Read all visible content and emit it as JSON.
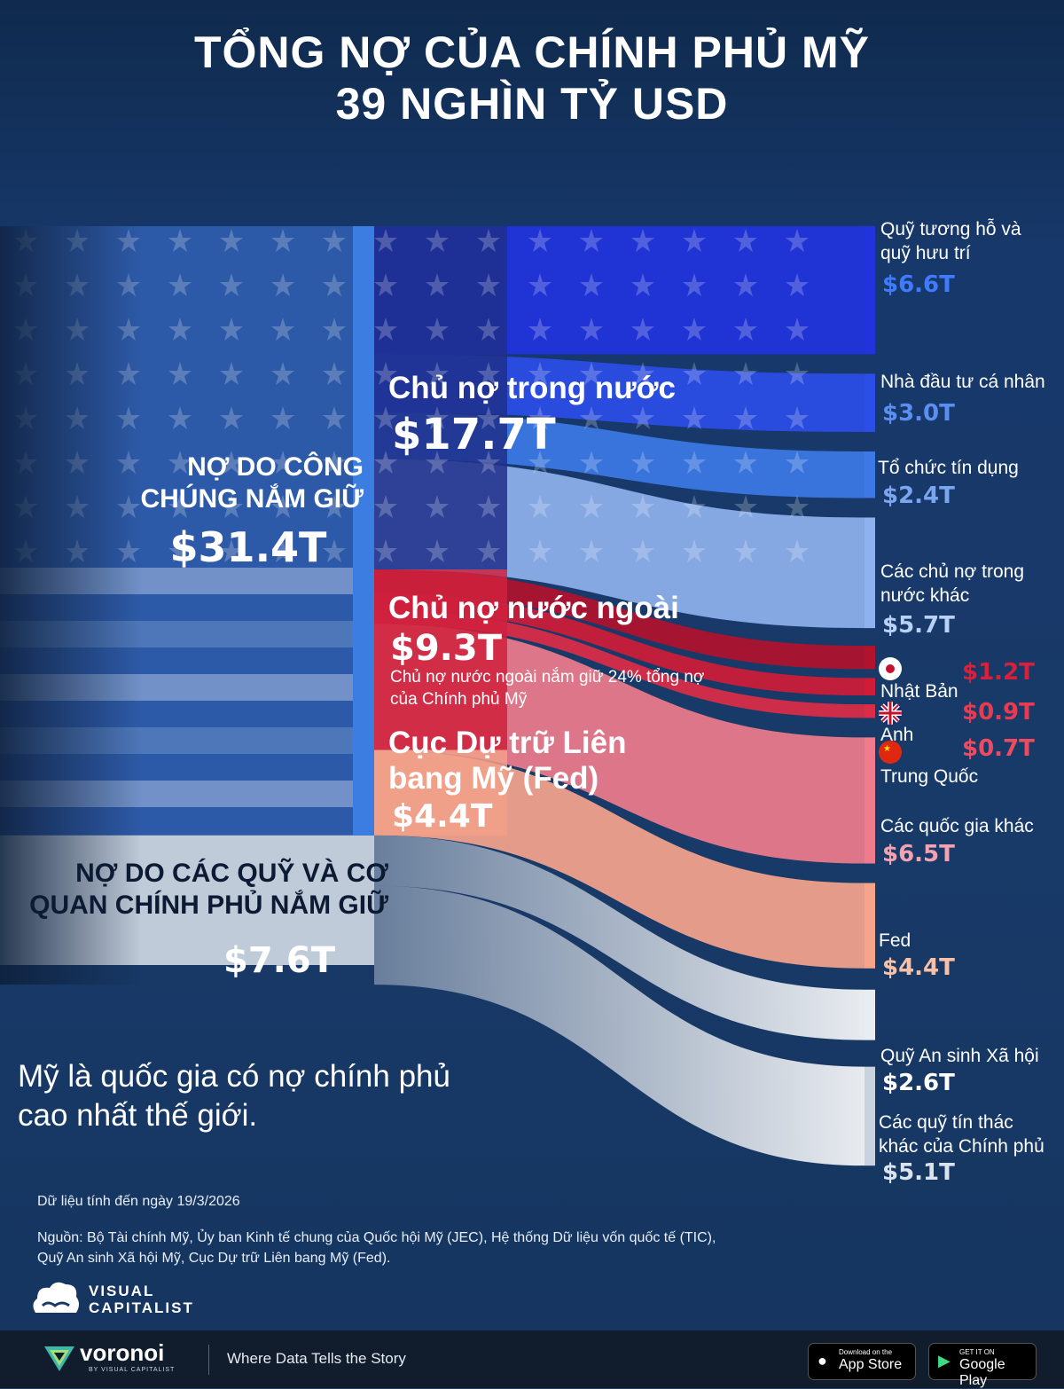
{
  "header": {
    "title_line1": "TỔNG NỢ CỦA CHÍNH PHỦ MỸ",
    "title_line2": "39 NGHÌN TỶ USD"
  },
  "chart_data": {
    "type": "sankey",
    "title": "TỔNG NỢ CỦA CHÍNH PHỦ MỸ 39 NGHÌN TỶ USD",
    "unit": "T",
    "total": 39,
    "level1": [
      {
        "name_line1": "NỢ DO CÔNG",
        "name_line2": "CHÚNG NẮM GIỮ",
        "value": 31.4,
        "value_label": "$31.4T"
      },
      {
        "name_line1": "NỢ DO CÁC QUỸ VÀ CƠ",
        "name_line2": "QUAN CHÍNH PHỦ NẮM GIỮ",
        "value": 7.6,
        "value_label": "$7.6T"
      }
    ],
    "level2": [
      {
        "name": "Chủ nợ trong nước",
        "value": 17.7,
        "value_label": "$17.7T",
        "color": "#1e2f8a"
      },
      {
        "name": "Chủ nợ nước ngoài",
        "value": 9.3,
        "value_label": "$9.3T",
        "color": "#d0213c",
        "note_line1": "Chủ nợ nước ngoài nắm giữ 24% tổng nợ",
        "note_line2": "của Chính phủ Mỹ"
      },
      {
        "name_line1": "Cục Dự trữ Liên",
        "name_line2": "bang Mỹ (Fed)",
        "value": 4.4,
        "value_label": "$4.4T",
        "color": "#f2a08a"
      }
    ],
    "level3": [
      {
        "label_line1": "Quỹ tương hỗ và",
        "label_line2": "quỹ hưu trí",
        "value": 6.6,
        "value_label": "$6.6T",
        "color": "#2233dd",
        "label_color": "#3f7bff"
      },
      {
        "label_line1": "Nhà đầu tư cá nhân",
        "value": 3.0,
        "value_label": "$3.0T",
        "color": "#2c4ee8",
        "label_color": "#5a8ef0"
      },
      {
        "label_line1": "Tổ chức tín dụng",
        "value": 2.4,
        "value_label": "$2.4T",
        "color": "#3d78e6",
        "label_color": "#7aa6f0"
      },
      {
        "label_line1": "Các chủ nợ trong",
        "label_line2": "nước khác",
        "value": 5.7,
        "value_label": "$5.7T",
        "color": "#8fb2ee",
        "label_color": "#b8d1f7"
      },
      {
        "label_line1": "Nhật Bản",
        "value": 1.2,
        "value_label": "$1.2T",
        "color": "#b2122c",
        "label_color": "#d8203a"
      },
      {
        "label_line1": "Anh",
        "value": 0.9,
        "value_label": "$0.9T",
        "color": "#d01c38",
        "label_color": "#ea3a52"
      },
      {
        "label_line1": "Trung Quốc",
        "value": 0.7,
        "value_label": "$0.7T",
        "color": "#de2c48",
        "label_color": "#ef4a60"
      },
      {
        "label_line1": "Các quốc gia khác",
        "value": 6.5,
        "value_label": "$6.5T",
        "color": "#ef7c8c",
        "label_color": "#f4a2b0"
      },
      {
        "label_line1": "Fed",
        "value": 4.4,
        "value_label": "$4.4T",
        "color": "#f7a48c",
        "label_color": "#f9c0a8"
      },
      {
        "label_line1": "Quỹ An sinh Xã hội",
        "value": 2.6,
        "value_label": "$2.6T",
        "color": "#e8edf4",
        "label_color": "#ffffff"
      },
      {
        "label_line1": "Các quỹ tín thác",
        "label_line2": "khác của Chính phủ",
        "value": 5.1,
        "value_label": "$5.1T",
        "color": "#c9d3e0",
        "label_color": "#dbe3ee"
      }
    ]
  },
  "caption": {
    "line1": "Mỹ là quốc gia có nợ chính phủ",
    "line2": "cao nhất thế giới."
  },
  "notes": {
    "date": "Dữ liệu tính đến ngày 19/3/2026",
    "source_line1": "Nguồn: Bộ Tài chính Mỹ, Ủy ban Kinh tế chung của Quốc hội Mỹ (JEC), Hệ thống Dữ liệu vốn quốc tế (TIC),",
    "source_line2": "Quỹ An sinh Xã hội Mỹ, Cục Dự trữ Liên bang Mỹ (Fed)."
  },
  "brand": {
    "vc_line1": "VISUAL",
    "vc_line2": "CAPITALIST",
    "voronoi": "voronoi",
    "voronoi_sub": "BY VISUAL CAPITALIST",
    "tagline": "Where Data Tells the Story",
    "appstore_small": "Download on the",
    "appstore_big": "App Store",
    "gplay_small": "GET IT ON",
    "gplay_big": "Google Play"
  }
}
